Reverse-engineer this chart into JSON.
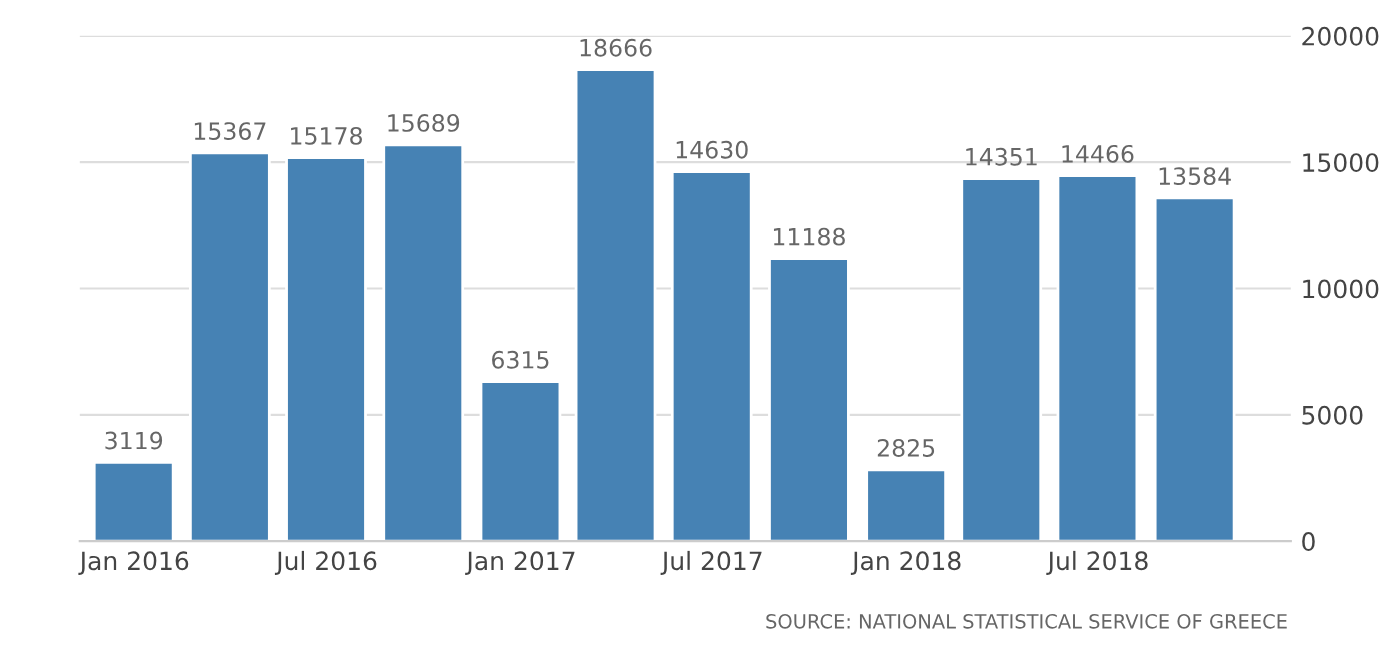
{
  "chart_data": {
    "type": "bar",
    "x": [
      "2015-12-31",
      "2016-03-31",
      "2016-06-30",
      "2016-09-30",
      "2016-12-31",
      "2017-03-31",
      "2017-06-30",
      "2017-09-30",
      "2017-12-31",
      "2018-03-31",
      "2018-06-30",
      "2018-09-30"
    ],
    "values": [
      3119,
      15367,
      15178,
      15689,
      6315,
      18666,
      14630,
      11188,
      2825,
      14351,
      14466,
      13584
    ],
    "color": "#4682b4",
    "data_labels": true,
    "xlim": [
      "2015-11-10",
      "2018-12-30"
    ],
    "xticks": [
      {
        "value": "2016-01-01",
        "label": "Jan 2016"
      },
      {
        "value": "2016-07-01",
        "label": "Jul 2016"
      },
      {
        "value": "2017-01-01",
        "label": "Jan 2017"
      },
      {
        "value": "2017-07-01",
        "label": "Jul 2017"
      },
      {
        "value": "2018-01-01",
        "label": "Jan 2018"
      },
      {
        "value": "2018-07-01",
        "label": "Jul 2018"
      }
    ],
    "ylim": [
      0,
      20000
    ],
    "yticks": [
      0,
      5000,
      10000,
      15000,
      20000
    ],
    "grid": "y",
    "annotations": [
      "SOURCE: NATIONAL STATISTICAL SERVICE OF GREECE"
    ]
  }
}
